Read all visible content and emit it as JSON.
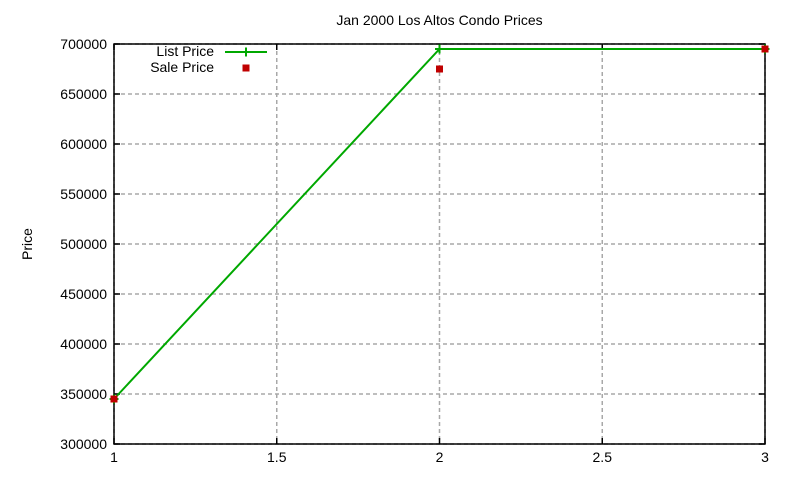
{
  "chart_data": {
    "type": "line",
    "title": "Jan 2000 Los Altos Condo Prices",
    "xlabel": "",
    "ylabel": "Price",
    "xlim": [
      1,
      3
    ],
    "ylim": [
      300000,
      700000
    ],
    "grid": true,
    "legend_position": "top-left-inside",
    "xticks": {
      "values": [
        1,
        1.5,
        2,
        2.5,
        3
      ],
      "labels": [
        "1",
        "1.5",
        "2",
        "2.5",
        "3"
      ]
    },
    "yticks": {
      "values": [
        300000,
        350000,
        400000,
        450000,
        500000,
        550000,
        600000,
        650000,
        700000
      ],
      "labels": [
        "300000",
        "350000",
        "400000",
        "450000",
        "500000",
        "550000",
        "600000",
        "650000",
        "700000"
      ]
    },
    "x": [
      1,
      2,
      3
    ],
    "series": [
      {
        "name": "List Price",
        "type": "line",
        "marker": "plus",
        "color": "#00a800",
        "x": [
          1,
          2,
          3
        ],
        "y": [
          345000,
          695000,
          695000
        ]
      },
      {
        "name": "Sale Price",
        "type": "scatter",
        "marker": "square",
        "color": "#c00000",
        "x": [
          1,
          2,
          3
        ],
        "y": [
          345000,
          675000,
          695000
        ]
      }
    ],
    "colors": {
      "background": "#ffffff",
      "border": "#000000",
      "grid": "#a8a8a8",
      "text": "#000000"
    }
  }
}
